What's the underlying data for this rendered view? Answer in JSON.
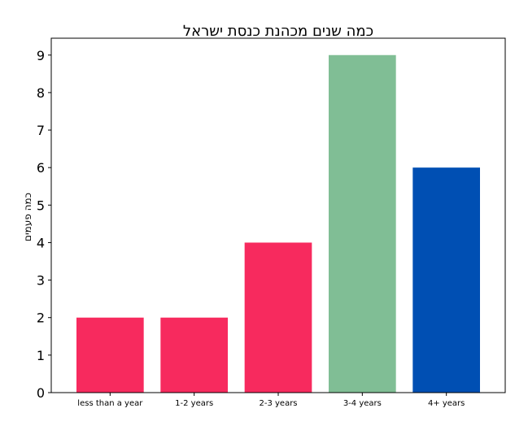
{
  "chart_data": {
    "type": "bar",
    "title": "כמה שנים מכהנת כנסת ישראל",
    "xlabel": "",
    "ylabel": "כמה פעמים",
    "categories": [
      "less than a year",
      "1-2 years",
      "2-3 years",
      "3-4 years",
      "4+ years"
    ],
    "values": [
      2,
      2,
      4,
      9,
      6
    ],
    "colors": [
      "#f72a5e",
      "#f72a5e",
      "#f72a5e",
      "#80be95",
      "#004fb3"
    ],
    "ylim": [
      0,
      9.45
    ],
    "yticks": [
      0,
      1,
      2,
      3,
      4,
      5,
      6,
      7,
      8,
      9
    ],
    "grid": false,
    "legend": "none"
  }
}
